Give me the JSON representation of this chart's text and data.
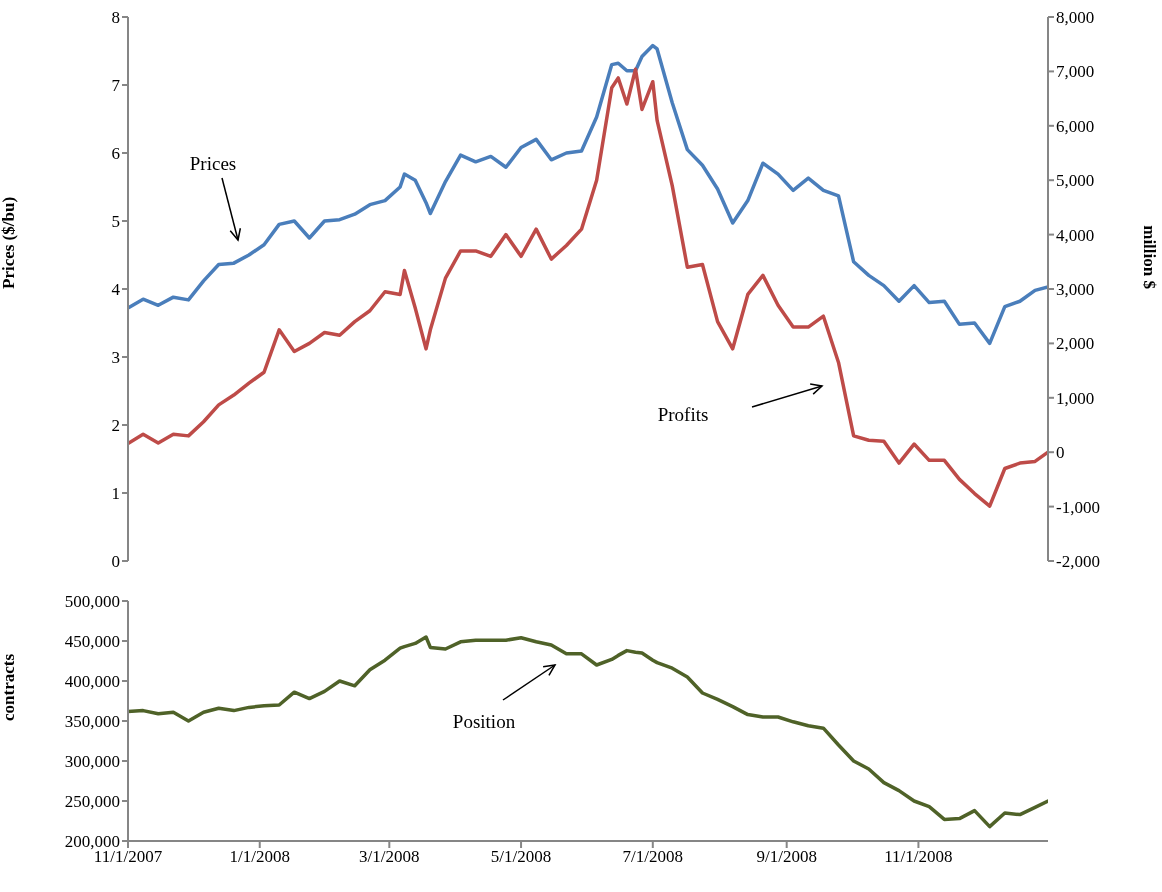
{
  "chart_data": [
    {
      "type": "line",
      "ylabel": "Prices ($/bu)",
      "y2label": "million $",
      "tick_labels": "y",
      "xlim": [
        "2007-11-01",
        "2008-12-31"
      ],
      "x": [
        "2007-11-01",
        "2007-11-08",
        "2007-11-15",
        "2007-11-22",
        "2007-11-29",
        "2007-12-06",
        "2007-12-13",
        "2007-12-20",
        "2007-12-27",
        "2008-01-03",
        "2008-01-10",
        "2008-01-17",
        "2008-01-24",
        "2008-01-31",
        "2008-02-07",
        "2008-02-14",
        "2008-02-21",
        "2008-02-28",
        "2008-03-06",
        "2008-03-08",
        "2008-03-13",
        "2008-03-18",
        "2008-03-20",
        "2008-03-27",
        "2008-04-03",
        "2008-04-10",
        "2008-04-17",
        "2008-04-24",
        "2008-05-01",
        "2008-05-08",
        "2008-05-15",
        "2008-05-22",
        "2008-05-29",
        "2008-06-05",
        "2008-06-12",
        "2008-06-15",
        "2008-06-19",
        "2008-06-23",
        "2008-06-26",
        "2008-07-01",
        "2008-07-03",
        "2008-07-10",
        "2008-07-17",
        "2008-07-24",
        "2008-07-31",
        "2008-08-07",
        "2008-08-14",
        "2008-08-21",
        "2008-08-28",
        "2008-09-04",
        "2008-09-11",
        "2008-09-18",
        "2008-09-25",
        "2008-10-02",
        "2008-10-09",
        "2008-10-16",
        "2008-10-23",
        "2008-10-30",
        "2008-11-06",
        "2008-11-13",
        "2008-11-20",
        "2008-11-27",
        "2008-12-04",
        "2008-12-11",
        "2008-12-18",
        "2008-12-25",
        "2008-12-31"
      ],
      "series": [
        {
          "color": "#4a7ebb",
          "values": [
            3.72,
            3.85,
            3.76,
            3.88,
            3.84,
            4.12,
            4.36,
            4.38,
            4.5,
            4.65,
            4.95,
            5.0,
            4.75,
            5.0,
            5.02,
            5.1,
            5.24,
            5.3,
            5.5,
            5.69,
            5.6,
            5.27,
            5.11,
            5.58,
            5.97,
            5.87,
            5.95,
            5.79,
            6.08,
            6.2,
            5.9,
            6.0,
            6.03,
            6.53,
            7.3,
            7.32,
            7.21,
            7.21,
            7.42,
            7.58,
            7.53,
            6.74,
            6.05,
            5.82,
            5.47,
            4.97,
            5.3,
            5.85,
            5.69,
            5.45,
            5.63,
            5.45,
            5.37,
            4.4,
            4.2,
            4.05,
            3.82,
            4.05,
            3.8,
            3.82,
            3.48,
            3.5,
            3.2,
            3.74,
            3.82,
            3.98,
            4.03
          ]
        },
        {
          "color": "#be4b48",
          "axis": "y2",
          "values": [
            160,
            330,
            170,
            330,
            300,
            560,
            870,
            1050,
            1270,
            1470,
            2250,
            1850,
            2000,
            2200,
            2150,
            2400,
            2600,
            2950,
            2900,
            3340,
            2650,
            1900,
            2250,
            3200,
            3700,
            3700,
            3600,
            4000,
            3600,
            4100,
            3550,
            3800,
            4100,
            5000,
            6700,
            6880,
            6400,
            7040,
            6300,
            6810,
            6100,
            4900,
            3400,
            3450,
            2400,
            1900,
            2900,
            3250,
            2700,
            2300,
            2300,
            2500,
            1650,
            300,
            220,
            200,
            -200,
            150,
            -150,
            -150,
            -500,
            -760,
            -990,
            -300,
            -200,
            -170,
            0
          ]
        }
      ],
      "ylim": [
        0,
        8
      ],
      "yticks": [
        0,
        1,
        2,
        3,
        4,
        5,
        6,
        7,
        8
      ],
      "y2lim": [
        -2000,
        8000
      ],
      "y2ticks": [
        {
          "value": -2000,
          "label": "-2,000"
        },
        {
          "value": -1000,
          "label": "-1,000"
        },
        0,
        {
          "value": 1000,
          "label": "1,000"
        },
        {
          "value": 2000,
          "label": "2,000"
        },
        {
          "value": 3000,
          "label": "3,000"
        },
        {
          "value": 4000,
          "label": "4,000"
        },
        {
          "value": 5000,
          "label": "5,000"
        },
        {
          "value": 6000,
          "label": "6,000"
        },
        {
          "value": 7000,
          "label": "7,000"
        },
        {
          "value": 8000,
          "label": "8,000"
        }
      ],
      "annotations": [
        "Prices",
        "Profits"
      ]
    },
    {
      "type": "line",
      "ylabel": "contracts",
      "xlim": [
        "2007-11-01",
        "2008-12-31"
      ],
      "xticks": [
        {
          "value": "2007-11-01",
          "label": "11/1/2007"
        },
        {
          "value": "2008-01-01",
          "label": "1/1/2008"
        },
        {
          "value": "2008-03-01",
          "label": "3/1/2008"
        },
        {
          "value": "2008-05-01",
          "label": "5/1/2008"
        },
        {
          "value": "2008-07-01",
          "label": "7/1/2008"
        },
        {
          "value": "2008-09-01",
          "label": "9/1/2008"
        },
        {
          "value": "2008-11-01",
          "label": "11/1/2008"
        }
      ],
      "x": [
        "2007-11-01",
        "2007-11-08",
        "2007-11-15",
        "2007-11-22",
        "2007-11-29",
        "2007-12-06",
        "2007-12-13",
        "2007-12-20",
        "2007-12-27",
        "2008-01-03",
        "2008-01-10",
        "2008-01-17",
        "2008-01-24",
        "2008-01-31",
        "2008-02-07",
        "2008-02-14",
        "2008-02-21",
        "2008-02-28",
        "2008-03-06",
        "2008-03-08",
        "2008-03-13",
        "2008-03-18",
        "2008-03-20",
        "2008-03-27",
        "2008-04-03",
        "2008-04-10",
        "2008-04-17",
        "2008-04-24",
        "2008-05-01",
        "2008-05-08",
        "2008-05-15",
        "2008-05-22",
        "2008-05-29",
        "2008-06-05",
        "2008-06-12",
        "2008-06-15",
        "2008-06-19",
        "2008-06-23",
        "2008-06-26",
        "2008-07-01",
        "2008-07-03",
        "2008-07-10",
        "2008-07-17",
        "2008-07-24",
        "2008-07-31",
        "2008-08-07",
        "2008-08-14",
        "2008-08-21",
        "2008-08-28",
        "2008-09-04",
        "2008-09-11",
        "2008-09-18",
        "2008-09-25",
        "2008-10-02",
        "2008-10-09",
        "2008-10-16",
        "2008-10-23",
        "2008-10-30",
        "2008-11-06",
        "2008-11-13",
        "2008-11-20",
        "2008-11-27",
        "2008-12-04",
        "2008-12-11",
        "2008-12-18",
        "2008-12-25",
        "2008-12-31"
      ],
      "series": [
        {
          "color": "#4f6228",
          "values": [
            362000,
            363000,
            359000,
            361000,
            350000,
            361000,
            366000,
            363000,
            367000,
            369000,
            370000,
            386000,
            378000,
            387000,
            400000,
            394000,
            414000,
            426000,
            441000,
            443000,
            447000,
            455000,
            442000,
            440000,
            449000,
            451000,
            451000,
            451000,
            454000,
            449000,
            445000,
            434000,
            434000,
            420000,
            427000,
            432000,
            438000,
            436000,
            435000,
            426000,
            423000,
            416000,
            405000,
            385000,
            377000,
            368000,
            358000,
            355000,
            355000,
            349000,
            344000,
            341000,
            320000,
            300000,
            290000,
            273000,
            263000,
            250000,
            243000,
            227000,
            228000,
            238000,
            218000,
            235000,
            233000,
            242000,
            250000
          ]
        }
      ],
      "ylim": [
        200000,
        500000
      ],
      "yticks": [
        {
          "value": 200000,
          "label": "200,000"
        },
        {
          "value": 250000,
          "label": "250,000"
        },
        {
          "value": 300000,
          "label": "300,000"
        },
        {
          "value": 350000,
          "label": "350,000"
        },
        {
          "value": 400000,
          "label": "400,000"
        },
        {
          "value": 450000,
          "label": "450,000"
        },
        {
          "value": 500000,
          "label": "500,000"
        }
      ],
      "annotations": [
        "Position"
      ]
    }
  ]
}
